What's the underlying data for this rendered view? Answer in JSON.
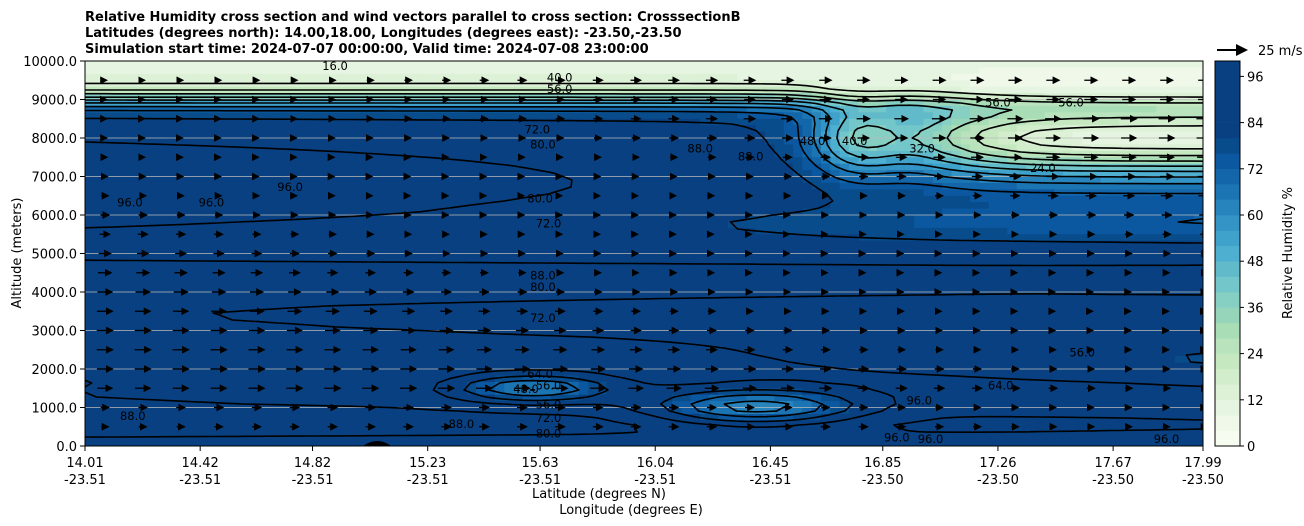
{
  "chart_data": {
    "type": "heatmap",
    "title_lines": [
      "Relative Humidity cross section and wind vectors parallel to cross section: CrosssectionB",
      "Latitudes (degrees north): 14.00,18.00, Longitudes (degrees east): -23.50,-23.50",
      "Simulation start time: 2024-07-07 00:00:00, Valid time: 2024-07-08 23:00:00"
    ],
    "xlabel_lat": "Latitude (degrees N)",
    "xlabel_lon": "Longitude (degrees E)",
    "ylabel": "Altitude (meters)",
    "xlim": [
      14.01,
      17.99
    ],
    "ylim": [
      0,
      10000
    ],
    "x_ticks": [
      {
        "lat": "14.01",
        "lon": "-23.51",
        "value": 14.01
      },
      {
        "lat": "14.42",
        "lon": "-23.51",
        "value": 14.42
      },
      {
        "lat": "14.82",
        "lon": "-23.51",
        "value": 14.82
      },
      {
        "lat": "15.23",
        "lon": "-23.51",
        "value": 15.23
      },
      {
        "lat": "15.63",
        "lon": "-23.51",
        "value": 15.63
      },
      {
        "lat": "16.04",
        "lon": "-23.51",
        "value": 16.04
      },
      {
        "lat": "16.45",
        "lon": "-23.51",
        "value": 16.45
      },
      {
        "lat": "16.85",
        "lon": "-23.50",
        "value": 16.85
      },
      {
        "lat": "17.26",
        "lon": "-23.50",
        "value": 17.26
      },
      {
        "lat": "17.67",
        "lon": "-23.50",
        "value": 17.67
      },
      {
        "lat": "17.99",
        "lon": "-23.50",
        "value": 17.99
      }
    ],
    "y_ticks": [
      "0.0",
      "1000.0",
      "2000.0",
      "3000.0",
      "4000.0",
      "5000.0",
      "6000.0",
      "7000.0",
      "8000.0",
      "9000.0",
      "10000.0"
    ],
    "colorbar": {
      "label": "Relative Humidity %",
      "min": 0,
      "max": 100,
      "step": 4,
      "ticks": [
        "0",
        "12",
        "24",
        "36",
        "48",
        "60",
        "72",
        "84",
        "96"
      ],
      "colors": [
        "#f7fcf0",
        "#eff8e9",
        "#e6f5e1",
        "#dcf1d6",
        "#d1edcb",
        "#c5e8c1",
        "#b8e3bd",
        "#a8ddb5",
        "#97d5bb",
        "#86cfc3",
        "#73c6c9",
        "#60bac9",
        "#4eafd0",
        "#3fa2cb",
        "#3394c5",
        "#2784bc",
        "#1c75b3",
        "#1366aa",
        "#0b58a0",
        "#084c8c",
        "#084081"
      ]
    },
    "wind_reference": "25 m/s",
    "contours": [
      {
        "level": "96.0",
        "approx_location": "lower and mid left"
      },
      {
        "level": "88.0",
        "approx_location": "near surface and 4400 m"
      },
      {
        "level": "80.0",
        "approx_location": "around 300 m, 4200 m, 7700 m"
      },
      {
        "level": "72.0",
        "approx_location": "around 600 m, 3300 m, 5800 m, 8200 m"
      },
      {
        "level": "64.0",
        "approx_location": "around 1800 m"
      },
      {
        "level": "56.0",
        "approx_location": "around 1000 m, 1500 m, 9200 m"
      },
      {
        "level": "48.0",
        "approx_location": "dry pockets at 1500 m and 8000 m"
      },
      {
        "level": "40.0",
        "approx_location": "around 9500 m and 16.9 lat"
      },
      {
        "level": "32.0",
        "approx_location": "upper right dry layer"
      },
      {
        "level": "24.0",
        "approx_location": "upper right dry core"
      },
      {
        "level": "16.0",
        "approx_location": "top left"
      }
    ],
    "contour_labels_shown": [
      {
        "text": "16.0",
        "x": 14.9,
        "y": 9850
      },
      {
        "text": "40.0",
        "x": 15.7,
        "y": 9550
      },
      {
        "text": "56.0",
        "x": 15.7,
        "y": 9250
      },
      {
        "text": "72.0",
        "x": 15.62,
        "y": 8200
      },
      {
        "text": "80.0",
        "x": 15.64,
        "y": 7800
      },
      {
        "text": "80.0",
        "x": 15.63,
        "y": 6400
      },
      {
        "text": "72.0",
        "x": 15.66,
        "y": 5750
      },
      {
        "text": "88.0",
        "x": 15.64,
        "y": 4400
      },
      {
        "text": "80.0",
        "x": 15.64,
        "y": 4100
      },
      {
        "text": "72.0",
        "x": 15.64,
        "y": 3300
      },
      {
        "text": "64.0",
        "x": 15.63,
        "y": 1850
      },
      {
        "text": "56.0",
        "x": 15.66,
        "y": 1550
      },
      {
        "text": "56.0",
        "x": 15.66,
        "y": 1050
      },
      {
        "text": "72.0",
        "x": 15.66,
        "y": 700
      },
      {
        "text": "80.0",
        "x": 15.66,
        "y": 300
      },
      {
        "text": "96.0",
        "x": 14.17,
        "y": 6300
      },
      {
        "text": "96.0",
        "x": 14.46,
        "y": 6300
      },
      {
        "text": "96.0",
        "x": 14.74,
        "y": 6700
      },
      {
        "text": "88.0",
        "x": 16.2,
        "y": 7700
      },
      {
        "text": "88.0",
        "x": 16.38,
        "y": 7500
      },
      {
        "text": "48.0",
        "x": 16.6,
        "y": 7900
      },
      {
        "text": "40.0",
        "x": 16.75,
        "y": 7900
      },
      {
        "text": "32.0",
        "x": 16.99,
        "y": 7700
      },
      {
        "text": "24.0",
        "x": 17.42,
        "y": 7200
      },
      {
        "text": "56.0",
        "x": 17.26,
        "y": 8900
      },
      {
        "text": "56.0",
        "x": 17.52,
        "y": 8900
      },
      {
        "text": "64.0",
        "x": 17.27,
        "y": 1550
      },
      {
        "text": "56.0",
        "x": 17.56,
        "y": 2400
      },
      {
        "text": "96.0",
        "x": 16.9,
        "y": 200
      },
      {
        "text": "96.0",
        "x": 17.02,
        "y": 150
      },
      {
        "text": "96.0",
        "x": 17.86,
        "y": 150
      },
      {
        "text": "88.0",
        "x": 14.18,
        "y": 750
      },
      {
        "text": "88.0",
        "x": 15.35,
        "y": 550
      },
      {
        "text": "48.0",
        "x": 15.58,
        "y": 1450
      },
      {
        "text": "96.0",
        "x": 16.98,
        "y": 1150
      }
    ]
  }
}
